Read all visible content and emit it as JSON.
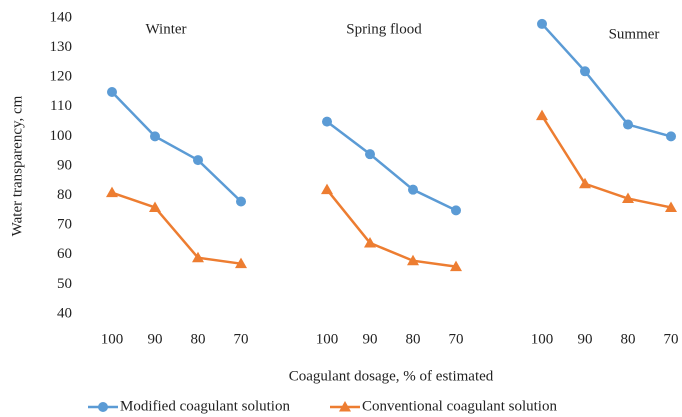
{
  "chart_data": {
    "type": "line",
    "categories": [
      "100",
      "90",
      "80",
      "70",
      null,
      "100",
      "90",
      "80",
      "70",
      null,
      "100",
      "90",
      "80",
      "70"
    ],
    "series": [
      {
        "name": "Modified coagulant solution",
        "color": "#5b9bd5",
        "marker": "circle",
        "values": [
          115,
          100,
          92,
          78,
          null,
          105,
          94,
          82,
          75,
          null,
          138,
          122,
          104,
          100
        ]
      },
      {
        "name": "Conventional coagulant solution",
        "color": "#ed7d31",
        "marker": "triangle",
        "values": [
          81,
          76,
          59,
          57,
          null,
          82,
          64,
          58,
          56,
          null,
          107,
          84,
          79,
          76
        ]
      }
    ],
    "annotations": [
      "Winter",
      "Spring flood",
      "Summer"
    ],
    "xlabel": "Coagulant dosage, % of estimated",
    "ylabel": "Water transparency, cm",
    "ylim": [
      40,
      140
    ],
    "yticks": [
      40,
      50,
      60,
      70,
      80,
      90,
      100,
      110,
      120,
      130,
      140
    ],
    "grid": false,
    "legend": "bottom"
  }
}
